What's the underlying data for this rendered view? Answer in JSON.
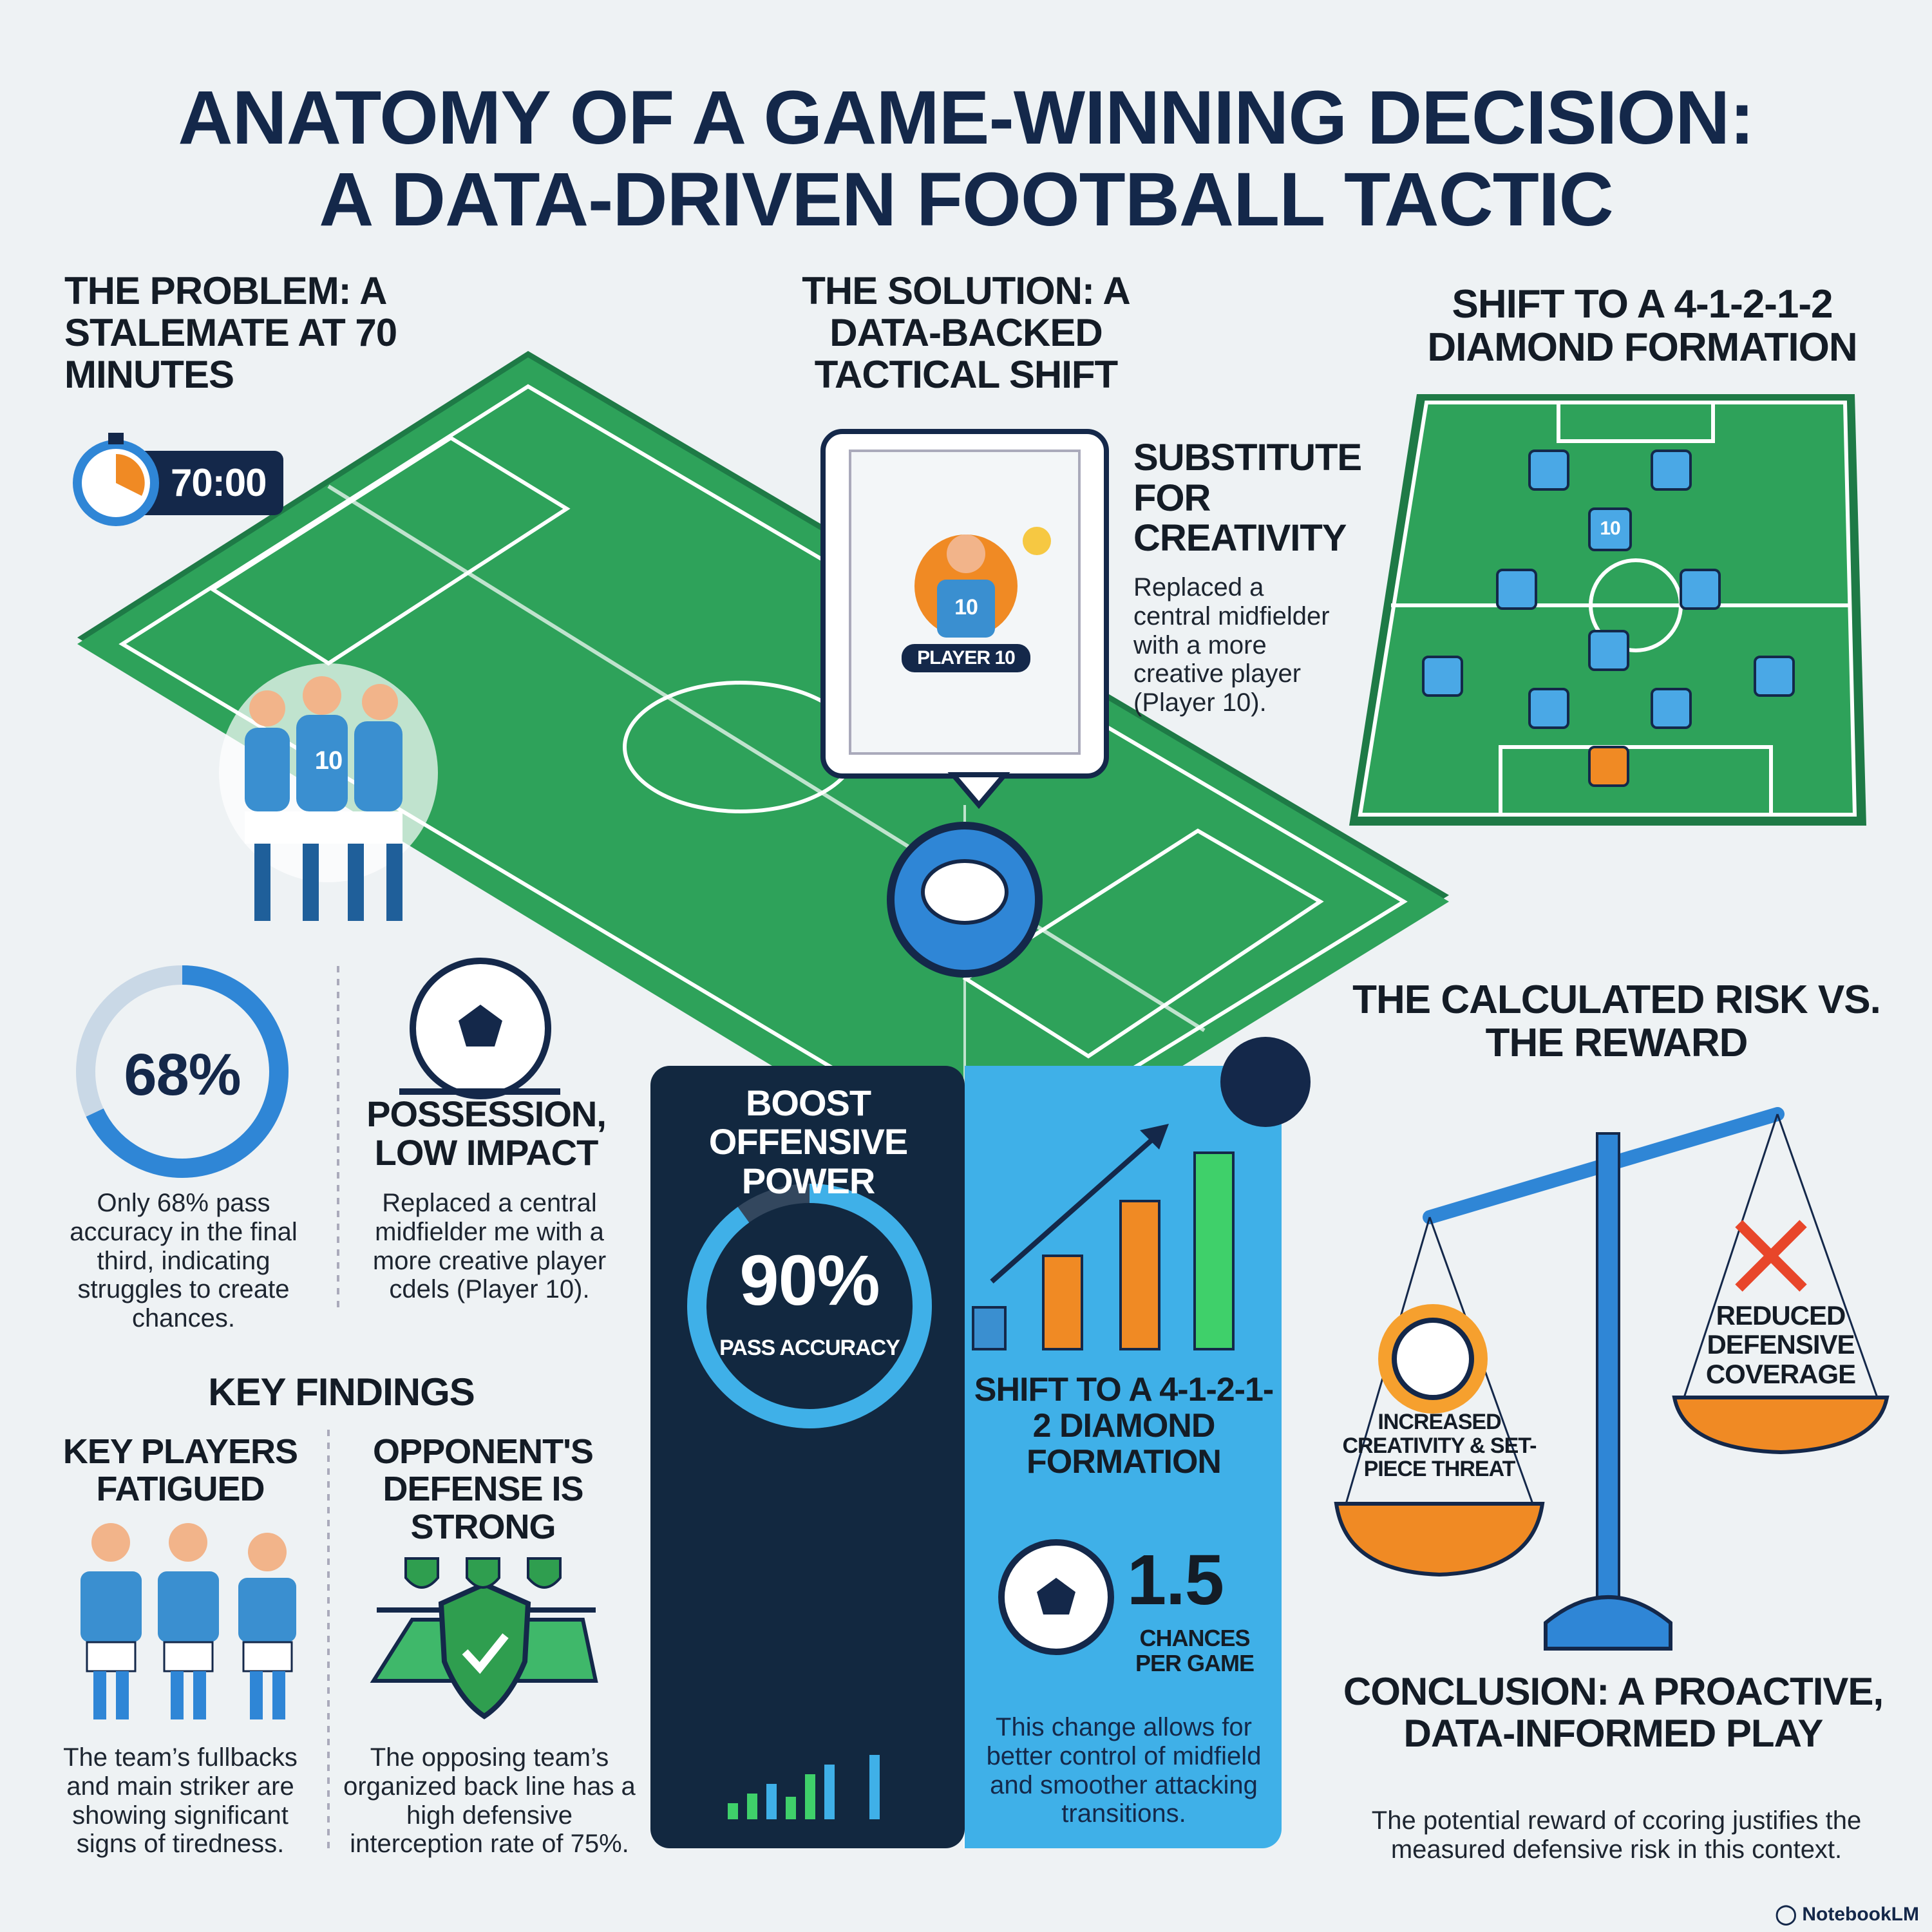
{
  "title": {
    "line1": "ANATOMY OF A GAME-WINNING DECISION:",
    "line2": "A DATA-DRIVEN FOOTBALL TACTIC"
  },
  "problem": {
    "heading": "THE PROBLEM: A STALEMATE AT 70 MINUTES",
    "timer": "70:00"
  },
  "solution": {
    "heading": "THE SOLUTION: A DATA-BACKED TACTICAL SHIFT",
    "card_label": "PLAYER 10",
    "jersey": "10",
    "substitute_heading": "SUBSTITUTE FOR CREATIVITY",
    "substitute_text": "Replaced a central midfielder with a more creative player (Player 10)."
  },
  "formation": {
    "heading": "SHIFT TO A 4-1-2-1-2 DIAMOND FORMATION",
    "jersey": "10"
  },
  "huddle": {
    "jersey": "10"
  },
  "pass_stat": {
    "value": "68%",
    "percent": 68,
    "text": "Only 68% pass accuracy in the final third, indicating struggles to create chances."
  },
  "possession": {
    "heading": "POSSESSION, LOW IMPACT",
    "text": "Replaced a central midfielder me with a more creative player cdels (Player 10)."
  },
  "key_findings": {
    "heading": "KEY FINDINGS",
    "fatigue": {
      "heading": "KEY PLAYERS FATIGUED",
      "text": "The team’s fullbacks and main striker are showing significant signs of tiredness."
    },
    "defense": {
      "heading": "OPPONENT'S DEFENSE IS STRONG",
      "text": "The opposing team’s organized back line has a high defensive interception rate of 75%."
    }
  },
  "boost": {
    "heading": "BOOST OFFENSIVE POWER",
    "value": "90%",
    "percent": 90,
    "label": "PASS ACCURACY"
  },
  "shift": {
    "heading": "SHIFT TO A 4-1-2-1-2 DIAMOND FORMATION",
    "value": "1.5",
    "unit": "CHANCES PER GAME",
    "text": "This change allows for better control of midfield and smoother attacking transitions."
  },
  "risk": {
    "heading": "THE CALCULATED RISK VS. THE REWARD",
    "left_pan": "INCREASED CREATIVITY & SET-PIECE THREAT",
    "right_pan": "REDUCED DEFENSIVE COVERAGE"
  },
  "conclusion": {
    "heading": "CONCLUSION: A PROACTIVE, DATA-INFORMED PLAY",
    "text": "The potential reward of ccoring justifies the measured defensive risk in this context."
  },
  "brand": "NotebookLM",
  "colors": {
    "navy": "#14284a",
    "blue": "#2f86d6",
    "light_blue": "#3fb0e8",
    "green": "#2f9e4f",
    "orange": "#f08a24",
    "dark_panel": "#122840"
  }
}
